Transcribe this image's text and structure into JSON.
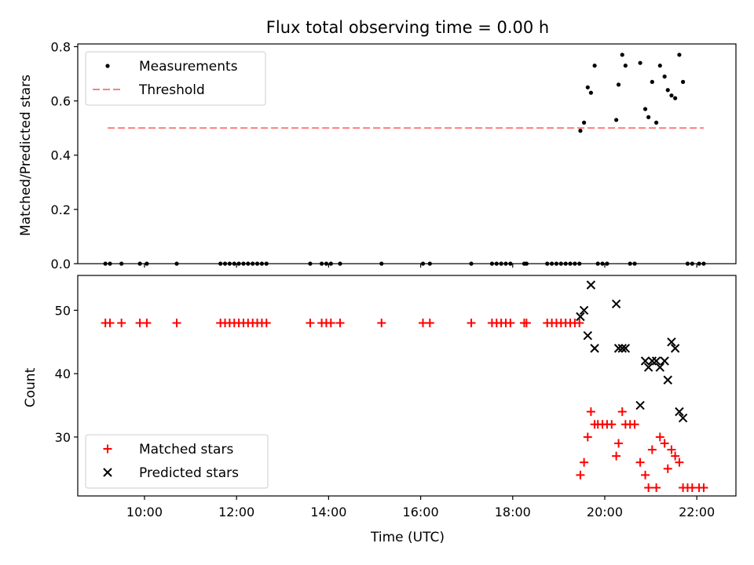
{
  "title": "Flux total observing time = 0.00 h",
  "chart_data": [
    {
      "type": "scatter",
      "ylabel": "Matched/Predicted stars",
      "xlim": [
        8.55,
        22.85
      ],
      "ylim": [
        0,
        0.81
      ],
      "yticks": [
        "0.0",
        "0.2",
        "0.4",
        "0.6",
        "0.8"
      ],
      "yticks_values": [
        0,
        0.2,
        0.4,
        0.6,
        0.8
      ],
      "legend": {
        "placement": "upper-left",
        "entries": [
          "Measurements",
          "Threshold"
        ]
      },
      "threshold": {
        "name": "Threshold",
        "y": 0.5,
        "x_range": [
          9.2,
          22.15
        ],
        "color": "#ff7f7f"
      },
      "series": [
        {
          "name": "Measurements",
          "color": "#000000",
          "points": [
            [
              9.15,
              0
            ],
            [
              9.25,
              0
            ],
            [
              9.5,
              0
            ],
            [
              9.9,
              0
            ],
            [
              10.05,
              0
            ],
            [
              10.7,
              0
            ],
            [
              11.65,
              0
            ],
            [
              11.75,
              0
            ],
            [
              11.85,
              0
            ],
            [
              11.95,
              0
            ],
            [
              12.05,
              0
            ],
            [
              12.15,
              0
            ],
            [
              12.25,
              0
            ],
            [
              12.35,
              0
            ],
            [
              12.45,
              0
            ],
            [
              12.55,
              0
            ],
            [
              12.65,
              0
            ],
            [
              13.6,
              0
            ],
            [
              13.85,
              0
            ],
            [
              13.95,
              0
            ],
            [
              14.05,
              0
            ],
            [
              14.25,
              0
            ],
            [
              15.15,
              0
            ],
            [
              16.05,
              0
            ],
            [
              16.2,
              0
            ],
            [
              17.1,
              0
            ],
            [
              17.55,
              0
            ],
            [
              17.65,
              0
            ],
            [
              17.75,
              0
            ],
            [
              17.85,
              0
            ],
            [
              17.95,
              0
            ],
            [
              18.25,
              0
            ],
            [
              18.3,
              0
            ],
            [
              18.75,
              0
            ],
            [
              18.85,
              0
            ],
            [
              18.95,
              0
            ],
            [
              19.05,
              0
            ],
            [
              19.15,
              0
            ],
            [
              19.25,
              0
            ],
            [
              19.35,
              0
            ],
            [
              19.45,
              0
            ],
            [
              19.47,
              0.49
            ],
            [
              19.55,
              0.52
            ],
            [
              19.63,
              0.65
            ],
            [
              19.7,
              0.63
            ],
            [
              19.78,
              0.73
            ],
            [
              19.85,
              0
            ],
            [
              19.95,
              0
            ],
            [
              20.05,
              0
            ],
            [
              20.25,
              0.53
            ],
            [
              20.3,
              0.66
            ],
            [
              20.38,
              0.77
            ],
            [
              20.45,
              0.73
            ],
            [
              20.55,
              0
            ],
            [
              20.65,
              0
            ],
            [
              20.77,
              0.74
            ],
            [
              20.88,
              0.57
            ],
            [
              20.95,
              0.54
            ],
            [
              21.03,
              0.67
            ],
            [
              21.12,
              0.52
            ],
            [
              21.2,
              0.73
            ],
            [
              21.3,
              0.69
            ],
            [
              21.37,
              0.64
            ],
            [
              21.45,
              0.62
            ],
            [
              21.53,
              0.61
            ],
            [
              21.62,
              0.77
            ],
            [
              21.7,
              0.67
            ],
            [
              21.8,
              0
            ],
            [
              21.9,
              0
            ],
            [
              22.05,
              0
            ],
            [
              22.15,
              0
            ]
          ]
        }
      ]
    },
    {
      "type": "scatter",
      "ylabel": "Count",
      "xlabel": "Time (UTC)",
      "xlim": [
        8.55,
        22.85
      ],
      "ylim": [
        20.7,
        55.5
      ],
      "yticks": [
        "30",
        "40",
        "50"
      ],
      "yticks_values": [
        30,
        40,
        50
      ],
      "xticks": [
        "10:00",
        "12:00",
        "14:00",
        "16:00",
        "18:00",
        "20:00",
        "22:00"
      ],
      "xticks_values": [
        10,
        12,
        14,
        16,
        18,
        20,
        22
      ],
      "legend": {
        "placement": "lower-left",
        "entries": [
          "Matched stars",
          "Predicted stars"
        ]
      },
      "series": [
        {
          "name": "Matched stars",
          "marker": "plus",
          "color": "#ff0000",
          "points": [
            [
              9.15,
              48
            ],
            [
              9.25,
              48
            ],
            [
              9.5,
              48
            ],
            [
              9.9,
              48
            ],
            [
              10.05,
              48
            ],
            [
              10.7,
              48
            ],
            [
              11.65,
              48
            ],
            [
              11.75,
              48
            ],
            [
              11.85,
              48
            ],
            [
              11.95,
              48
            ],
            [
              12.05,
              48
            ],
            [
              12.15,
              48
            ],
            [
              12.25,
              48
            ],
            [
              12.35,
              48
            ],
            [
              12.45,
              48
            ],
            [
              12.55,
              48
            ],
            [
              12.65,
              48
            ],
            [
              13.6,
              48
            ],
            [
              13.85,
              48
            ],
            [
              13.95,
              48
            ],
            [
              14.05,
              48
            ],
            [
              14.25,
              48
            ],
            [
              15.15,
              48
            ],
            [
              16.05,
              48
            ],
            [
              16.2,
              48
            ],
            [
              17.1,
              48
            ],
            [
              17.55,
              48
            ],
            [
              17.65,
              48
            ],
            [
              17.75,
              48
            ],
            [
              17.85,
              48
            ],
            [
              17.95,
              48
            ],
            [
              18.25,
              48
            ],
            [
              18.3,
              48
            ],
            [
              18.75,
              48
            ],
            [
              18.85,
              48
            ],
            [
              18.95,
              48
            ],
            [
              19.05,
              48
            ],
            [
              19.15,
              48
            ],
            [
              19.25,
              48
            ],
            [
              19.35,
              48
            ],
            [
              19.45,
              48
            ],
            [
              19.47,
              24
            ],
            [
              19.55,
              26
            ],
            [
              19.63,
              30
            ],
            [
              19.7,
              34
            ],
            [
              19.78,
              32
            ],
            [
              19.85,
              32
            ],
            [
              19.95,
              32
            ],
            [
              20.05,
              32
            ],
            [
              20.15,
              32
            ],
            [
              20.25,
              27
            ],
            [
              20.3,
              29
            ],
            [
              20.38,
              34
            ],
            [
              20.45,
              32
            ],
            [
              20.55,
              32
            ],
            [
              20.65,
              32
            ],
            [
              20.77,
              26
            ],
            [
              20.88,
              24
            ],
            [
              20.95,
              22
            ],
            [
              21.03,
              28
            ],
            [
              21.12,
              22
            ],
            [
              21.2,
              30
            ],
            [
              21.3,
              29
            ],
            [
              21.37,
              25
            ],
            [
              21.45,
              28
            ],
            [
              21.53,
              27
            ],
            [
              21.62,
              26
            ],
            [
              21.7,
              22
            ],
            [
              21.8,
              22
            ],
            [
              21.9,
              22
            ],
            [
              22.05,
              22
            ],
            [
              22.15,
              22
            ]
          ]
        },
        {
          "name": "Predicted stars",
          "marker": "x",
          "color": "#000000",
          "points": [
            [
              19.47,
              49
            ],
            [
              19.55,
              50
            ],
            [
              19.63,
              46
            ],
            [
              19.7,
              54
            ],
            [
              19.78,
              44
            ],
            [
              20.25,
              51
            ],
            [
              20.3,
              44
            ],
            [
              20.38,
              44
            ],
            [
              20.45,
              44
            ],
            [
              20.77,
              35
            ],
            [
              20.88,
              42
            ],
            [
              20.95,
              41
            ],
            [
              21.03,
              42
            ],
            [
              21.12,
              42
            ],
            [
              21.2,
              41
            ],
            [
              21.3,
              42
            ],
            [
              21.37,
              39
            ],
            [
              21.45,
              45
            ],
            [
              21.53,
              44
            ],
            [
              21.62,
              34
            ],
            [
              21.7,
              33
            ]
          ]
        }
      ]
    }
  ]
}
